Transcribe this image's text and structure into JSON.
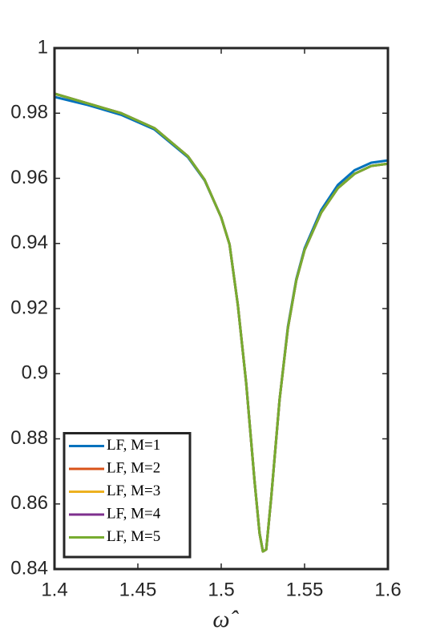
{
  "chart_data": {
    "type": "line",
    "x_label": "ω̂",
    "x": [
      1.4,
      1.42,
      1.44,
      1.46,
      1.48,
      1.49,
      1.5,
      1.505,
      1.51,
      1.515,
      1.52,
      1.523,
      1.525,
      1.527,
      1.53,
      1.535,
      1.54,
      1.545,
      1.55,
      1.56,
      1.57,
      1.58,
      1.59,
      1.6
    ],
    "series": [
      {
        "name": "LF, M=1",
        "color": "#0072bd",
        "values": [
          0.985,
          0.9825,
          0.9795,
          0.975,
          0.9665,
          0.9594,
          0.948,
          0.9397,
          0.921,
          0.897,
          0.867,
          0.851,
          0.8454,
          0.846,
          0.862,
          0.892,
          0.9145,
          0.929,
          0.9385,
          0.9503,
          0.958,
          0.9625,
          0.9648,
          0.9655
        ]
      },
      {
        "name": "LF, M=2",
        "color": "#d95319",
        "values": [
          0.986,
          0.983,
          0.98,
          0.9754,
          0.9668,
          0.9596,
          0.948,
          0.9397,
          0.921,
          0.897,
          0.867,
          0.851,
          0.8454,
          0.846,
          0.862,
          0.892,
          0.914,
          0.9286,
          0.938,
          0.9495,
          0.957,
          0.9614,
          0.9638,
          0.9645
        ]
      },
      {
        "name": "LF, M=3",
        "color": "#edb120",
        "values": [
          0.986,
          0.983,
          0.98,
          0.9754,
          0.9668,
          0.9596,
          0.948,
          0.9397,
          0.921,
          0.897,
          0.867,
          0.851,
          0.8454,
          0.846,
          0.862,
          0.892,
          0.914,
          0.9286,
          0.938,
          0.9495,
          0.957,
          0.9614,
          0.9638,
          0.9645
        ]
      },
      {
        "name": "LF, M=4",
        "color": "#7e2f8e",
        "values": [
          0.986,
          0.983,
          0.98,
          0.9754,
          0.9668,
          0.9596,
          0.948,
          0.9397,
          0.921,
          0.897,
          0.867,
          0.851,
          0.8454,
          0.846,
          0.862,
          0.892,
          0.914,
          0.9286,
          0.938,
          0.9495,
          0.957,
          0.9614,
          0.9638,
          0.9645
        ]
      },
      {
        "name": "LF, M=5",
        "color": "#77ac30",
        "values": [
          0.986,
          0.983,
          0.98,
          0.9754,
          0.9668,
          0.9596,
          0.948,
          0.9397,
          0.921,
          0.897,
          0.867,
          0.851,
          0.8454,
          0.846,
          0.862,
          0.892,
          0.914,
          0.9286,
          0.938,
          0.9495,
          0.957,
          0.9614,
          0.9638,
          0.9645
        ]
      }
    ],
    "xlim": [
      1.4,
      1.6
    ],
    "xticks": [
      1.4,
      1.45,
      1.5,
      1.55,
      1.6
    ],
    "ylim": [
      0.84,
      1
    ],
    "yticks": [
      0.84,
      0.86,
      0.88,
      0.9,
      0.92,
      0.94,
      0.96,
      0.98,
      1
    ],
    "legend": "lower left",
    "grid": false
  }
}
